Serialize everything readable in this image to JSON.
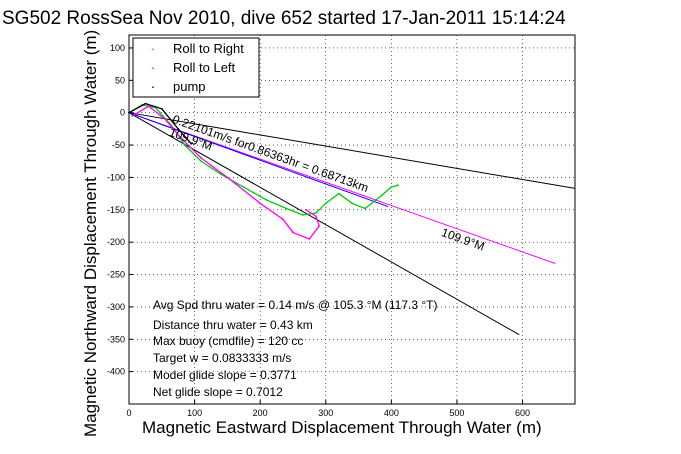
{
  "chart_data": {
    "type": "line",
    "title": "SG502 RossSea Nov 2010, dive 652 started 17-Jan-2011 15:14:24",
    "xlabel": "Magnetic Eastward Displacement Through Water (m)",
    "ylabel": "Magnetic Northward Displacement Through Water (m)",
    "xlim": [
      0,
      680
    ],
    "ylim": [
      -450,
      120
    ],
    "xticks": [
      0,
      100,
      200,
      300,
      400,
      500,
      600
    ],
    "yticks": [
      100,
      50,
      0,
      -50,
      -100,
      -150,
      -200,
      -250,
      -300,
      -350,
      -400
    ],
    "grid": true,
    "legend": {
      "location": "top-left",
      "entries": [
        {
          "label": "Roll to Right",
          "color": "#00cc00"
        },
        {
          "label": "Roll to Left",
          "color": "#ff00ff"
        },
        {
          "label": "pump",
          "color": "#000000"
        }
      ]
    },
    "series": [
      {
        "name": "Roll to Right",
        "color": "#00cc00",
        "x": [
          0,
          20,
          40,
          65,
          85,
          110,
          140,
          175,
          210,
          240,
          265,
          285,
          300,
          320,
          340,
          360,
          385,
          400,
          410
        ],
        "y": [
          0,
          12,
          8,
          -20,
          -50,
          -75,
          -95,
          -115,
          -135,
          -148,
          -158,
          -155,
          -140,
          -125,
          -140,
          -148,
          -128,
          -115,
          -112
        ]
      },
      {
        "name": "Roll to Left",
        "color": "#ff00ff",
        "x": [
          5,
          30,
          55,
          80,
          110,
          150,
          200,
          235,
          250,
          275,
          290,
          285,
          270
        ],
        "y": [
          -5,
          10,
          -10,
          -40,
          -70,
          -100,
          -140,
          -165,
          -185,
          -195,
          -175,
          -160,
          -150
        ]
      },
      {
        "name": "pump",
        "color": "#000000",
        "x": [
          0,
          25,
          50,
          75,
          95
        ],
        "y": [
          0,
          14,
          6,
          -25,
          -48
        ]
      }
    ],
    "reference_lines": [
      {
        "x": [
          0,
          650
        ],
        "y": [
          0,
          -233
        ],
        "color": "#ff00ff"
      },
      {
        "x": [
          0,
          680
        ],
        "y": [
          0,
          -117
        ],
        "color": "#000000"
      },
      {
        "x": [
          0,
          595
        ],
        "y": [
          0,
          -343
        ],
        "color": "#000000"
      },
      {
        "x": [
          0,
          395
        ],
        "y": [
          0,
          -145
        ],
        "color": "#0000ff"
      }
    ],
    "annotations": [
      {
        "text": "0.22101m/s for0.86363hr = 0.68713km",
        "x": 65,
        "y": -15,
        "angle_deg": 19.7
      },
      {
        "text": "109.9°M",
        "x": 60,
        "y": -35,
        "angle_deg": 19.7
      },
      {
        "text": "109.9°M",
        "x": 475,
        "y": -190,
        "angle_deg": 19.7
      }
    ],
    "stats": [
      "Avg Spd thru water =  0.14 m/s @ 105.3    °M (117.3 °T)",
      "Distance thru water =  0.43 km",
      "Max buoy (cmdfile) = 120 cc",
      "Target w = 0.0833333 m/s",
      "Model glide slope = 0.3771",
      "Net glide slope = 0.7012"
    ]
  }
}
